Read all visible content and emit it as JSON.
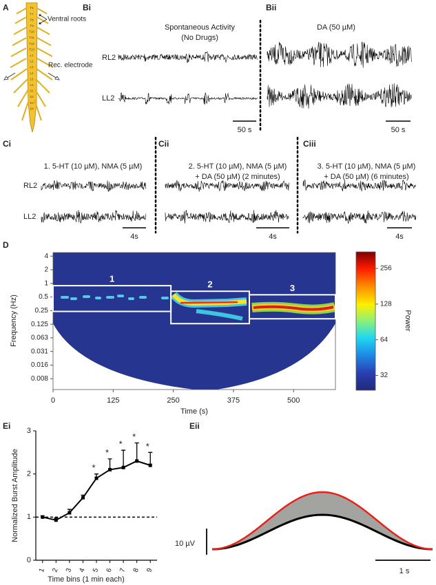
{
  "panels": {
    "A": {
      "label": "A",
      "segments": [
        "T6",
        "T7",
        "T8",
        "T9",
        "T10",
        "T11",
        "T12",
        "T13",
        "L1",
        "L2",
        "L3",
        "L4",
        "L5",
        "L6",
        "S1",
        "S2",
        "S3",
        "S4"
      ],
      "annotations": [
        "Ventral roots",
        "Rec. electrode"
      ]
    },
    "Bi": {
      "label": "Bi",
      "title": [
        "Spontaneous Activity",
        "(No Drugs)"
      ],
      "traces": [
        "RL2",
        "LL2"
      ],
      "scale_bar": "50 s"
    },
    "Bii": {
      "label": "Bii",
      "title": "DA (50 µM)",
      "scale_bar": "50 s"
    },
    "Ci": {
      "label": "Ci",
      "title": "1. 5-HT (10 µM), NMA (5 µM)",
      "traces": [
        "RL2",
        "LL2"
      ],
      "scale_bar": "4s"
    },
    "Cii": {
      "label": "Cii",
      "title": [
        "2. 5-HT (10 µM), NMA (5 µM)",
        "+ DA (50 µM) (2 minutes)"
      ],
      "scale_bar": "4s"
    },
    "Ciii": {
      "label": "Ciii",
      "title": [
        "3. 5-HT (10 µM), NMA (5 µM)",
        "+ DA (50 µM) (6 minutes)"
      ],
      "scale_bar": "4s"
    },
    "D": {
      "label": "D"
    },
    "Ei": {
      "label": "Ei"
    },
    "Eii": {
      "label": "Eii",
      "scale_bars": [
        "10 µV",
        "1 s"
      ]
    }
  },
  "chart_data": [
    {
      "type": "spectrogram",
      "x_label": "Time (s)",
      "y_label": "Frequency (Hz)",
      "xlim": [
        0,
        587
      ],
      "xticks": [
        0,
        125,
        250,
        375,
        500
      ],
      "ylim": [
        0.0045,
        4.8
      ],
      "log_y": true,
      "yticks": [
        4,
        2,
        1,
        0.5,
        0.25,
        0.125,
        {
          "value": 0.0625,
          "label": "0.063"
        },
        {
          "value": 0.03125,
          "label": "0.031"
        },
        {
          "value": 0.015625,
          "label": "0.016"
        },
        {
          "value": 0.0078125,
          "label": "0.008"
        }
      ],
      "colorbar": {
        "label": "Power",
        "lim": [
          24,
          353
        ],
        "log": true,
        "ticks": [
          32,
          64,
          128,
          256
        ]
      },
      "regions": [
        {
          "label": "1",
          "x": [
            0,
            245
          ],
          "y": [
            0.24,
            0.89
          ]
        },
        {
          "label": "2",
          "x": [
            245,
            408
          ],
          "y": [
            0.129,
            0.67
          ]
        },
        {
          "label": "3",
          "x": [
            408,
            587
          ],
          "y": [
            0.165,
            0.56
          ]
        }
      ]
    },
    {
      "type": "line",
      "y_label": "Normalized Burst Amplitude",
      "x_label": "Time bins (1 min each)",
      "x": [
        1,
        2,
        3,
        4,
        5,
        6,
        7,
        8,
        9
      ],
      "xlim": [
        0.5,
        9.5
      ],
      "xticks": [
        1,
        2,
        3,
        4,
        5,
        6,
        7,
        8,
        9
      ],
      "ylim": [
        0,
        3
      ],
      "yticks": [
        0,
        1,
        2,
        3
      ],
      "series": [
        {
          "color": "#000000",
          "values": [
            1.0,
            0.93,
            1.1,
            1.45,
            1.9,
            2.1,
            2.15,
            2.3,
            2.2
          ],
          "errors": [
            0.03,
            0.05,
            0.08,
            0.06,
            0.1,
            0.25,
            0.4,
            0.42,
            0.3
          ],
          "annotations": [
            null,
            null,
            null,
            null,
            "*",
            "*",
            "*",
            "*",
            "*"
          ]
        }
      ],
      "reference_line": {
        "y": 1,
        "style": "dashed"
      }
    }
  ]
}
